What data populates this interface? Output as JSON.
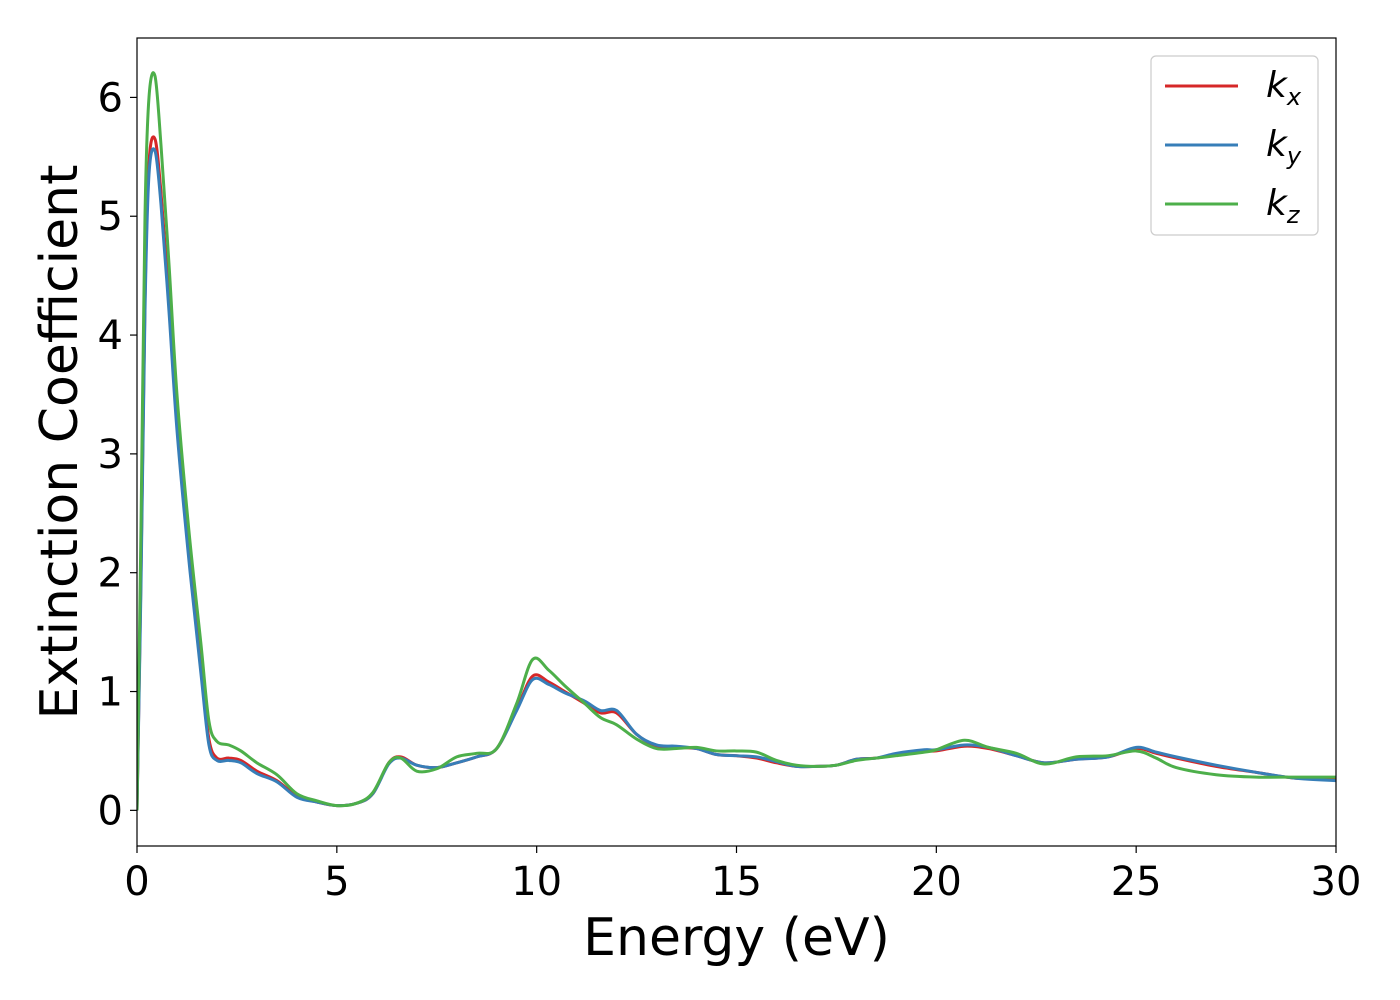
{
  "chart_data": {
    "type": "line",
    "title": "",
    "xlabel": "Energy (eV)",
    "ylabel": "Extinction Coefficient",
    "xlim": [
      0,
      30
    ],
    "ylim": [
      -0.3,
      6.5
    ],
    "xticks": [
      0,
      5,
      10,
      15,
      20,
      25,
      30
    ],
    "yticks": [
      0,
      1,
      2,
      3,
      4,
      5,
      6
    ],
    "grid": false,
    "legend_position": "top-right",
    "series": [
      {
        "name": "k",
        "subscript": "x",
        "color": "#d62728",
        "x": [
          0,
          0.1,
          0.2,
          0.3,
          0.45,
          0.6,
          0.8,
          1.0,
          1.3,
          1.6,
          1.8,
          2.0,
          2.3,
          2.6,
          3.0,
          3.5,
          4.0,
          4.5,
          5.0,
          5.5,
          5.9,
          6.3,
          6.6,
          7.0,
          7.5,
          8.0,
          8.5,
          9.0,
          9.5,
          9.9,
          10.3,
          10.7,
          11.2,
          11.6,
          12.0,
          12.5,
          13.0,
          13.5,
          14.0,
          14.5,
          15.0,
          15.5,
          16.0,
          16.5,
          17.0,
          17.5,
          18.0,
          18.5,
          19.0,
          19.7,
          20.0,
          20.7,
          21.3,
          22.0,
          22.7,
          23.5,
          24.3,
          25.0,
          25.5,
          26.0,
          27.0,
          28.0,
          29.0,
          30.0
        ],
        "values": [
          0.0,
          2.0,
          4.3,
          5.45,
          5.65,
          5.2,
          4.3,
          3.3,
          2.2,
          1.2,
          0.6,
          0.44,
          0.44,
          0.42,
          0.33,
          0.25,
          0.12,
          0.07,
          0.04,
          0.06,
          0.14,
          0.4,
          0.45,
          0.38,
          0.36,
          0.4,
          0.45,
          0.52,
          0.85,
          1.13,
          1.08,
          1.0,
          0.9,
          0.82,
          0.82,
          0.64,
          0.54,
          0.53,
          0.52,
          0.47,
          0.46,
          0.44,
          0.4,
          0.37,
          0.37,
          0.38,
          0.43,
          0.44,
          0.47,
          0.5,
          0.5,
          0.54,
          0.52,
          0.46,
          0.4,
          0.43,
          0.45,
          0.52,
          0.48,
          0.44,
          0.37,
          0.32,
          0.27,
          0.27
        ]
      },
      {
        "name": "k",
        "subscript": "y",
        "color": "#377eb8",
        "x": [
          0,
          0.1,
          0.2,
          0.3,
          0.45,
          0.6,
          0.8,
          1.0,
          1.3,
          1.6,
          1.8,
          2.0,
          2.3,
          2.6,
          3.0,
          3.5,
          4.0,
          4.5,
          5.0,
          5.5,
          5.9,
          6.3,
          6.6,
          7.0,
          7.5,
          8.0,
          8.5,
          9.0,
          9.5,
          9.9,
          10.3,
          10.7,
          11.2,
          11.6,
          12.0,
          12.5,
          13.0,
          13.5,
          14.0,
          14.5,
          15.0,
          15.5,
          16.0,
          16.5,
          17.0,
          17.5,
          18.0,
          18.5,
          19.0,
          19.7,
          20.0,
          20.7,
          21.3,
          22.0,
          22.7,
          23.5,
          24.3,
          25.0,
          25.5,
          26.0,
          27.0,
          28.0,
          29.0,
          30.0
        ],
        "values": [
          0.0,
          1.9,
          4.2,
          5.35,
          5.55,
          5.1,
          4.2,
          3.2,
          2.1,
          1.15,
          0.55,
          0.42,
          0.42,
          0.4,
          0.31,
          0.24,
          0.11,
          0.07,
          0.04,
          0.06,
          0.14,
          0.39,
          0.44,
          0.38,
          0.36,
          0.4,
          0.45,
          0.52,
          0.84,
          1.1,
          1.06,
          0.99,
          0.92,
          0.84,
          0.84,
          0.64,
          0.55,
          0.54,
          0.52,
          0.47,
          0.46,
          0.45,
          0.41,
          0.37,
          0.37,
          0.38,
          0.43,
          0.44,
          0.48,
          0.51,
          0.51,
          0.55,
          0.53,
          0.46,
          0.4,
          0.43,
          0.45,
          0.53,
          0.49,
          0.45,
          0.38,
          0.32,
          0.27,
          0.25
        ]
      },
      {
        "name": "k",
        "subscript": "z",
        "color": "#4daf4a",
        "x": [
          0,
          0.1,
          0.2,
          0.3,
          0.45,
          0.6,
          0.8,
          1.0,
          1.3,
          1.6,
          1.8,
          2.0,
          2.3,
          2.6,
          3.0,
          3.5,
          4.0,
          4.5,
          5.0,
          5.5,
          5.9,
          6.3,
          6.6,
          7.0,
          7.5,
          8.0,
          8.5,
          9.0,
          9.5,
          9.9,
          10.3,
          10.7,
          11.2,
          11.6,
          12.0,
          12.5,
          13.0,
          13.5,
          14.0,
          14.5,
          15.0,
          15.5,
          16.0,
          16.5,
          17.0,
          17.5,
          18.0,
          18.5,
          19.0,
          19.7,
          20.0,
          20.7,
          21.3,
          22.0,
          22.7,
          23.5,
          24.3,
          25.0,
          25.5,
          26.0,
          27.0,
          28.0,
          29.0,
          30.0
        ],
        "values": [
          0.0,
          2.4,
          5.0,
          6.0,
          6.18,
          5.6,
          4.6,
          3.5,
          2.35,
          1.4,
          0.75,
          0.58,
          0.55,
          0.5,
          0.4,
          0.3,
          0.14,
          0.08,
          0.04,
          0.06,
          0.15,
          0.4,
          0.44,
          0.33,
          0.35,
          0.45,
          0.48,
          0.52,
          0.9,
          1.27,
          1.18,
          1.05,
          0.9,
          0.78,
          0.72,
          0.6,
          0.52,
          0.52,
          0.53,
          0.5,
          0.5,
          0.49,
          0.42,
          0.38,
          0.37,
          0.38,
          0.42,
          0.44,
          0.46,
          0.49,
          0.51,
          0.59,
          0.53,
          0.48,
          0.39,
          0.45,
          0.46,
          0.5,
          0.44,
          0.36,
          0.3,
          0.28,
          0.28,
          0.28
        ]
      }
    ]
  }
}
